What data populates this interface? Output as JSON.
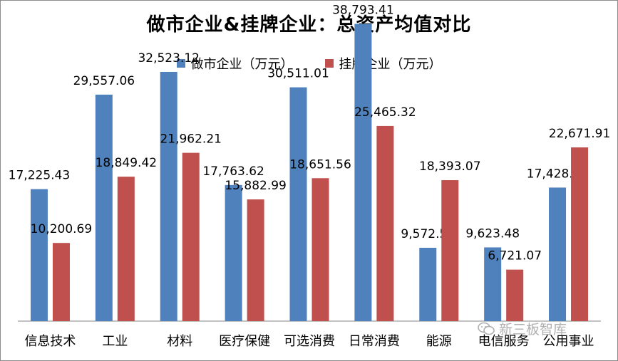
{
  "chart_data": {
    "type": "bar",
    "title": "做市企业&挂牌企业：总资产均值对比",
    "categories": [
      "信息技术",
      "工业",
      "材料",
      "医疗保健",
      "可选消费",
      "日常消费",
      "能源",
      "电信服务",
      "公用事业"
    ],
    "series": [
      {
        "name": "做市企业（万元）",
        "color": "#4f81bd",
        "values": [
          17225.43,
          29557.06,
          32523.12,
          17763.62,
          30511.01,
          38793.41,
          9572.53,
          9623.48,
          17428.74
        ],
        "labels": [
          "17,225.43",
          "29,557.06",
          "32,523.12",
          "17,763.62",
          "30,511.01",
          "38,793.41",
          "9,572.53",
          "9,623.48",
          "17,428.74"
        ]
      },
      {
        "name": "挂牌企业（万元）",
        "color": "#c0504d",
        "values": [
          10200.69,
          18849.42,
          21962.21,
          15882.99,
          18651.56,
          25465.32,
          18393.07,
          6721.07,
          22671.91
        ],
        "labels": [
          "10,200.69",
          "18,849.42",
          "21,962.21",
          "15,882.99",
          "18,651.56",
          "25,465.32",
          "18,393.07",
          "6,721.07",
          "22,671.91"
        ]
      }
    ],
    "ylim": [
      0,
      40000
    ],
    "grid": false,
    "legend_position": "top"
  },
  "watermark": {
    "text": "新三板智库",
    "icon": "wechat-icon"
  }
}
